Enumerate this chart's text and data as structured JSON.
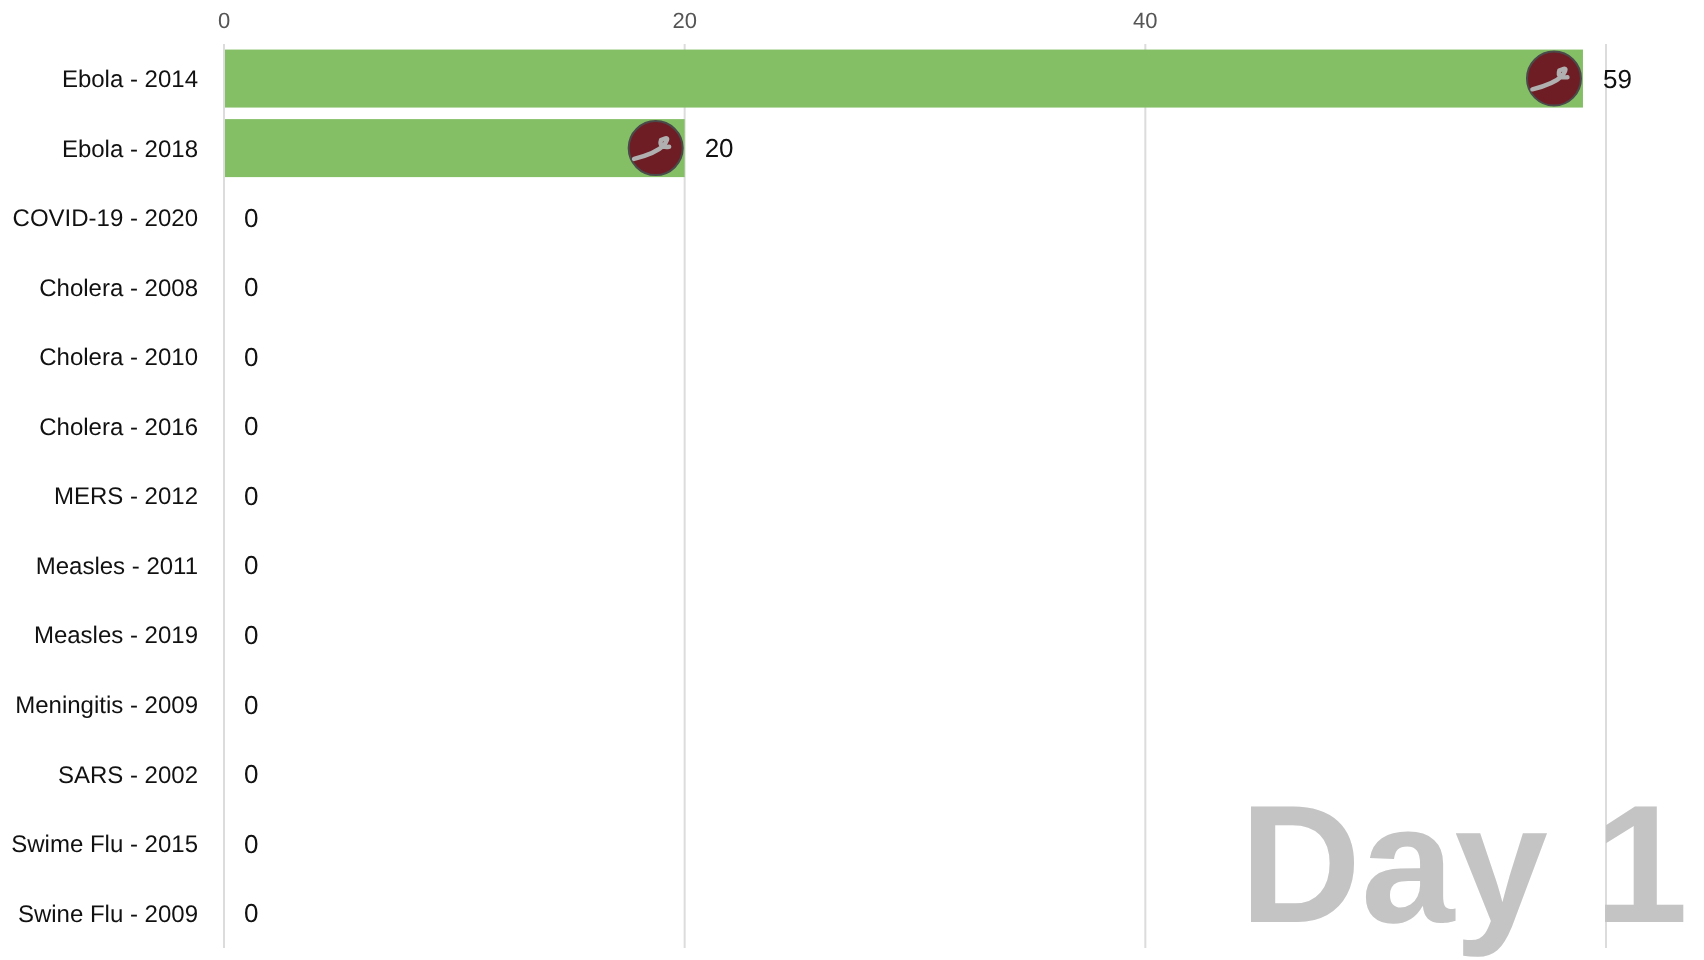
{
  "chart_data": {
    "type": "bar",
    "orientation": "horizontal",
    "categories": [
      "Ebola - 2014",
      "Ebola - 2018",
      "COVID-19 - 2020",
      "Cholera - 2008",
      "Cholera - 2010",
      "Cholera - 2016",
      "MERS - 2012",
      "Measles - 2011",
      "Measles - 2019",
      "Meningitis - 2009",
      "SARS - 2002",
      "Swime Flu - 2015",
      "Swine Flu - 2009"
    ],
    "values": [
      59,
      20,
      0,
      0,
      0,
      0,
      0,
      0,
      0,
      0,
      0,
      0,
      0
    ],
    "color": "#84bf66",
    "xlim": [
      0,
      60
    ],
    "xticks": [
      0,
      20,
      40
    ],
    "grid": "x",
    "data_labels": true,
    "annotations": [
      "Day 1"
    ]
  }
}
